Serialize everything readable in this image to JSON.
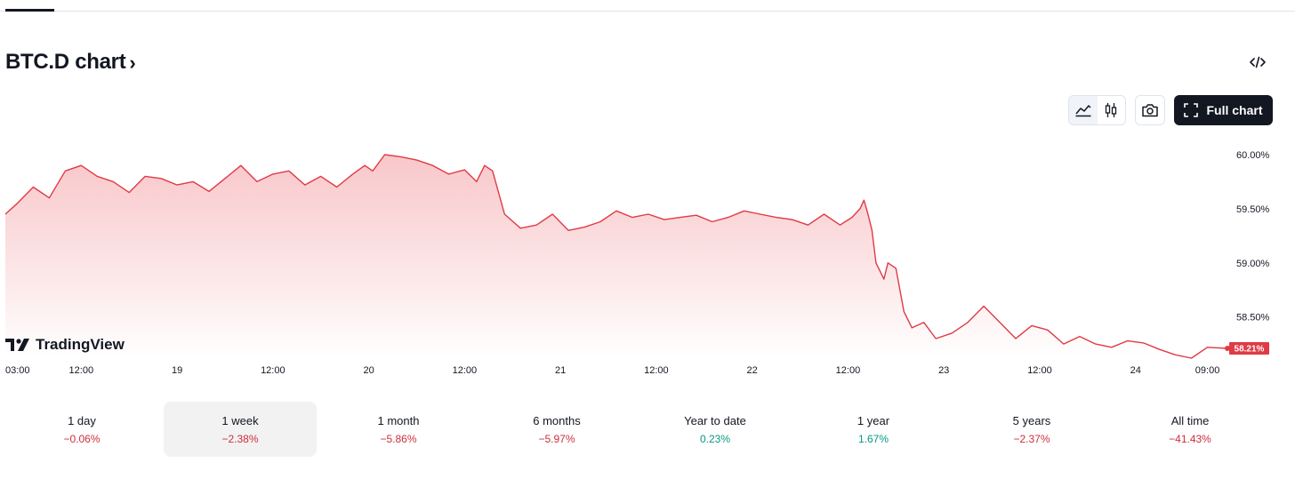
{
  "title": "BTC.D chart",
  "colors": {
    "line": "#e03a45",
    "fill_top": "#f8c4c7",
    "fill_bottom": "#ffffff",
    "negative": "#cc2f3c",
    "positive": "#089981",
    "dark": "#131722"
  },
  "icons": {
    "title_chevron": "chevron-right-icon",
    "embed": "code-icon",
    "area_chart": "area-chart-icon",
    "candles": "candlestick-icon",
    "snapshot": "camera-icon",
    "fullscreen": "fullscreen-icon",
    "logo": "tradingview-logo-icon"
  },
  "toolbar": {
    "full_chart_label": "Full chart"
  },
  "logo_text": "TradingView",
  "price_tag": "58.21%",
  "periods": [
    {
      "label": "1 day",
      "value": "−0.06%",
      "trend": "neg",
      "active": false
    },
    {
      "label": "1 week",
      "value": "−2.38%",
      "trend": "neg",
      "active": true
    },
    {
      "label": "1 month",
      "value": "−5.86%",
      "trend": "neg",
      "active": false
    },
    {
      "label": "6 months",
      "value": "−5.97%",
      "trend": "neg",
      "active": false
    },
    {
      "label": "Year to date",
      "value": "0.23%",
      "trend": "pos",
      "active": false
    },
    {
      "label": "1 year",
      "value": "1.67%",
      "trend": "pos",
      "active": false
    },
    {
      "label": "5 years",
      "value": "−2.37%",
      "trend": "neg",
      "active": false
    },
    {
      "label": "All time",
      "value": "−41.43%",
      "trend": "neg",
      "active": false
    }
  ],
  "chart_data": {
    "type": "area",
    "x_tick_labels": [
      "03:00",
      "12:00",
      "19",
      "12:00",
      "20",
      "12:00",
      "21",
      "12:00",
      "22",
      "12:00",
      "23",
      "12:00",
      "24",
      "09:00"
    ],
    "x_tick_hours": [
      3,
      12,
      24,
      36,
      48,
      60,
      72,
      84,
      96,
      108,
      120,
      132,
      144,
      153
    ],
    "y_tick_labels": [
      "60.00%",
      "59.50%",
      "59.00%",
      "58.50%"
    ],
    "y_ticks": [
      60.0,
      59.5,
      59.0,
      58.5
    ],
    "ylim": [
      58.21,
      60.0
    ],
    "xlim_hours": [
      2.5,
      155.5
    ],
    "series": [
      {
        "hours": [
          2.5,
          4,
          6,
          8,
          10,
          12,
          14,
          16,
          18,
          20,
          22,
          24,
          26,
          28,
          30,
          32,
          34,
          36,
          38,
          40,
          42,
          44,
          46,
          47.5,
          48.5,
          50,
          52,
          54,
          56,
          58,
          60,
          61.5,
          62.5,
          63.5,
          65,
          67,
          69,
          71,
          73,
          75,
          77,
          79,
          81,
          83,
          85,
          87,
          89,
          91,
          93,
          95,
          97,
          99,
          101,
          103,
          105,
          107,
          108.5,
          109.5,
          110,
          110.5,
          111,
          111.5,
          112.5,
          113,
          114,
          115,
          116,
          117.5,
          119,
          121,
          123,
          125,
          127,
          129,
          131,
          133,
          135,
          137,
          139,
          141,
          143,
          145,
          147,
          149,
          151,
          153,
          155.5
        ],
        "values": [
          59.45,
          59.55,
          59.7,
          59.6,
          59.85,
          59.9,
          59.8,
          59.75,
          59.65,
          59.8,
          59.78,
          59.72,
          59.75,
          59.66,
          59.78,
          59.9,
          59.75,
          59.82,
          59.85,
          59.72,
          59.8,
          59.7,
          59.82,
          59.9,
          59.85,
          60.0,
          59.98,
          59.95,
          59.9,
          59.82,
          59.86,
          59.75,
          59.9,
          59.85,
          59.45,
          59.32,
          59.35,
          59.45,
          59.3,
          59.33,
          59.38,
          59.48,
          59.42,
          59.45,
          59.4,
          59.42,
          59.44,
          59.38,
          59.42,
          59.48,
          59.45,
          59.42,
          59.4,
          59.35,
          59.45,
          59.35,
          59.42,
          59.5,
          59.58,
          59.45,
          59.3,
          59.0,
          58.85,
          59.0,
          58.95,
          58.55,
          58.4,
          58.45,
          58.3,
          58.35,
          58.45,
          58.6,
          58.45,
          58.3,
          58.42,
          58.38,
          58.25,
          58.32,
          58.25,
          58.22,
          58.28,
          58.26,
          58.2,
          58.15,
          58.12,
          58.22,
          58.21
        ]
      }
    ]
  }
}
